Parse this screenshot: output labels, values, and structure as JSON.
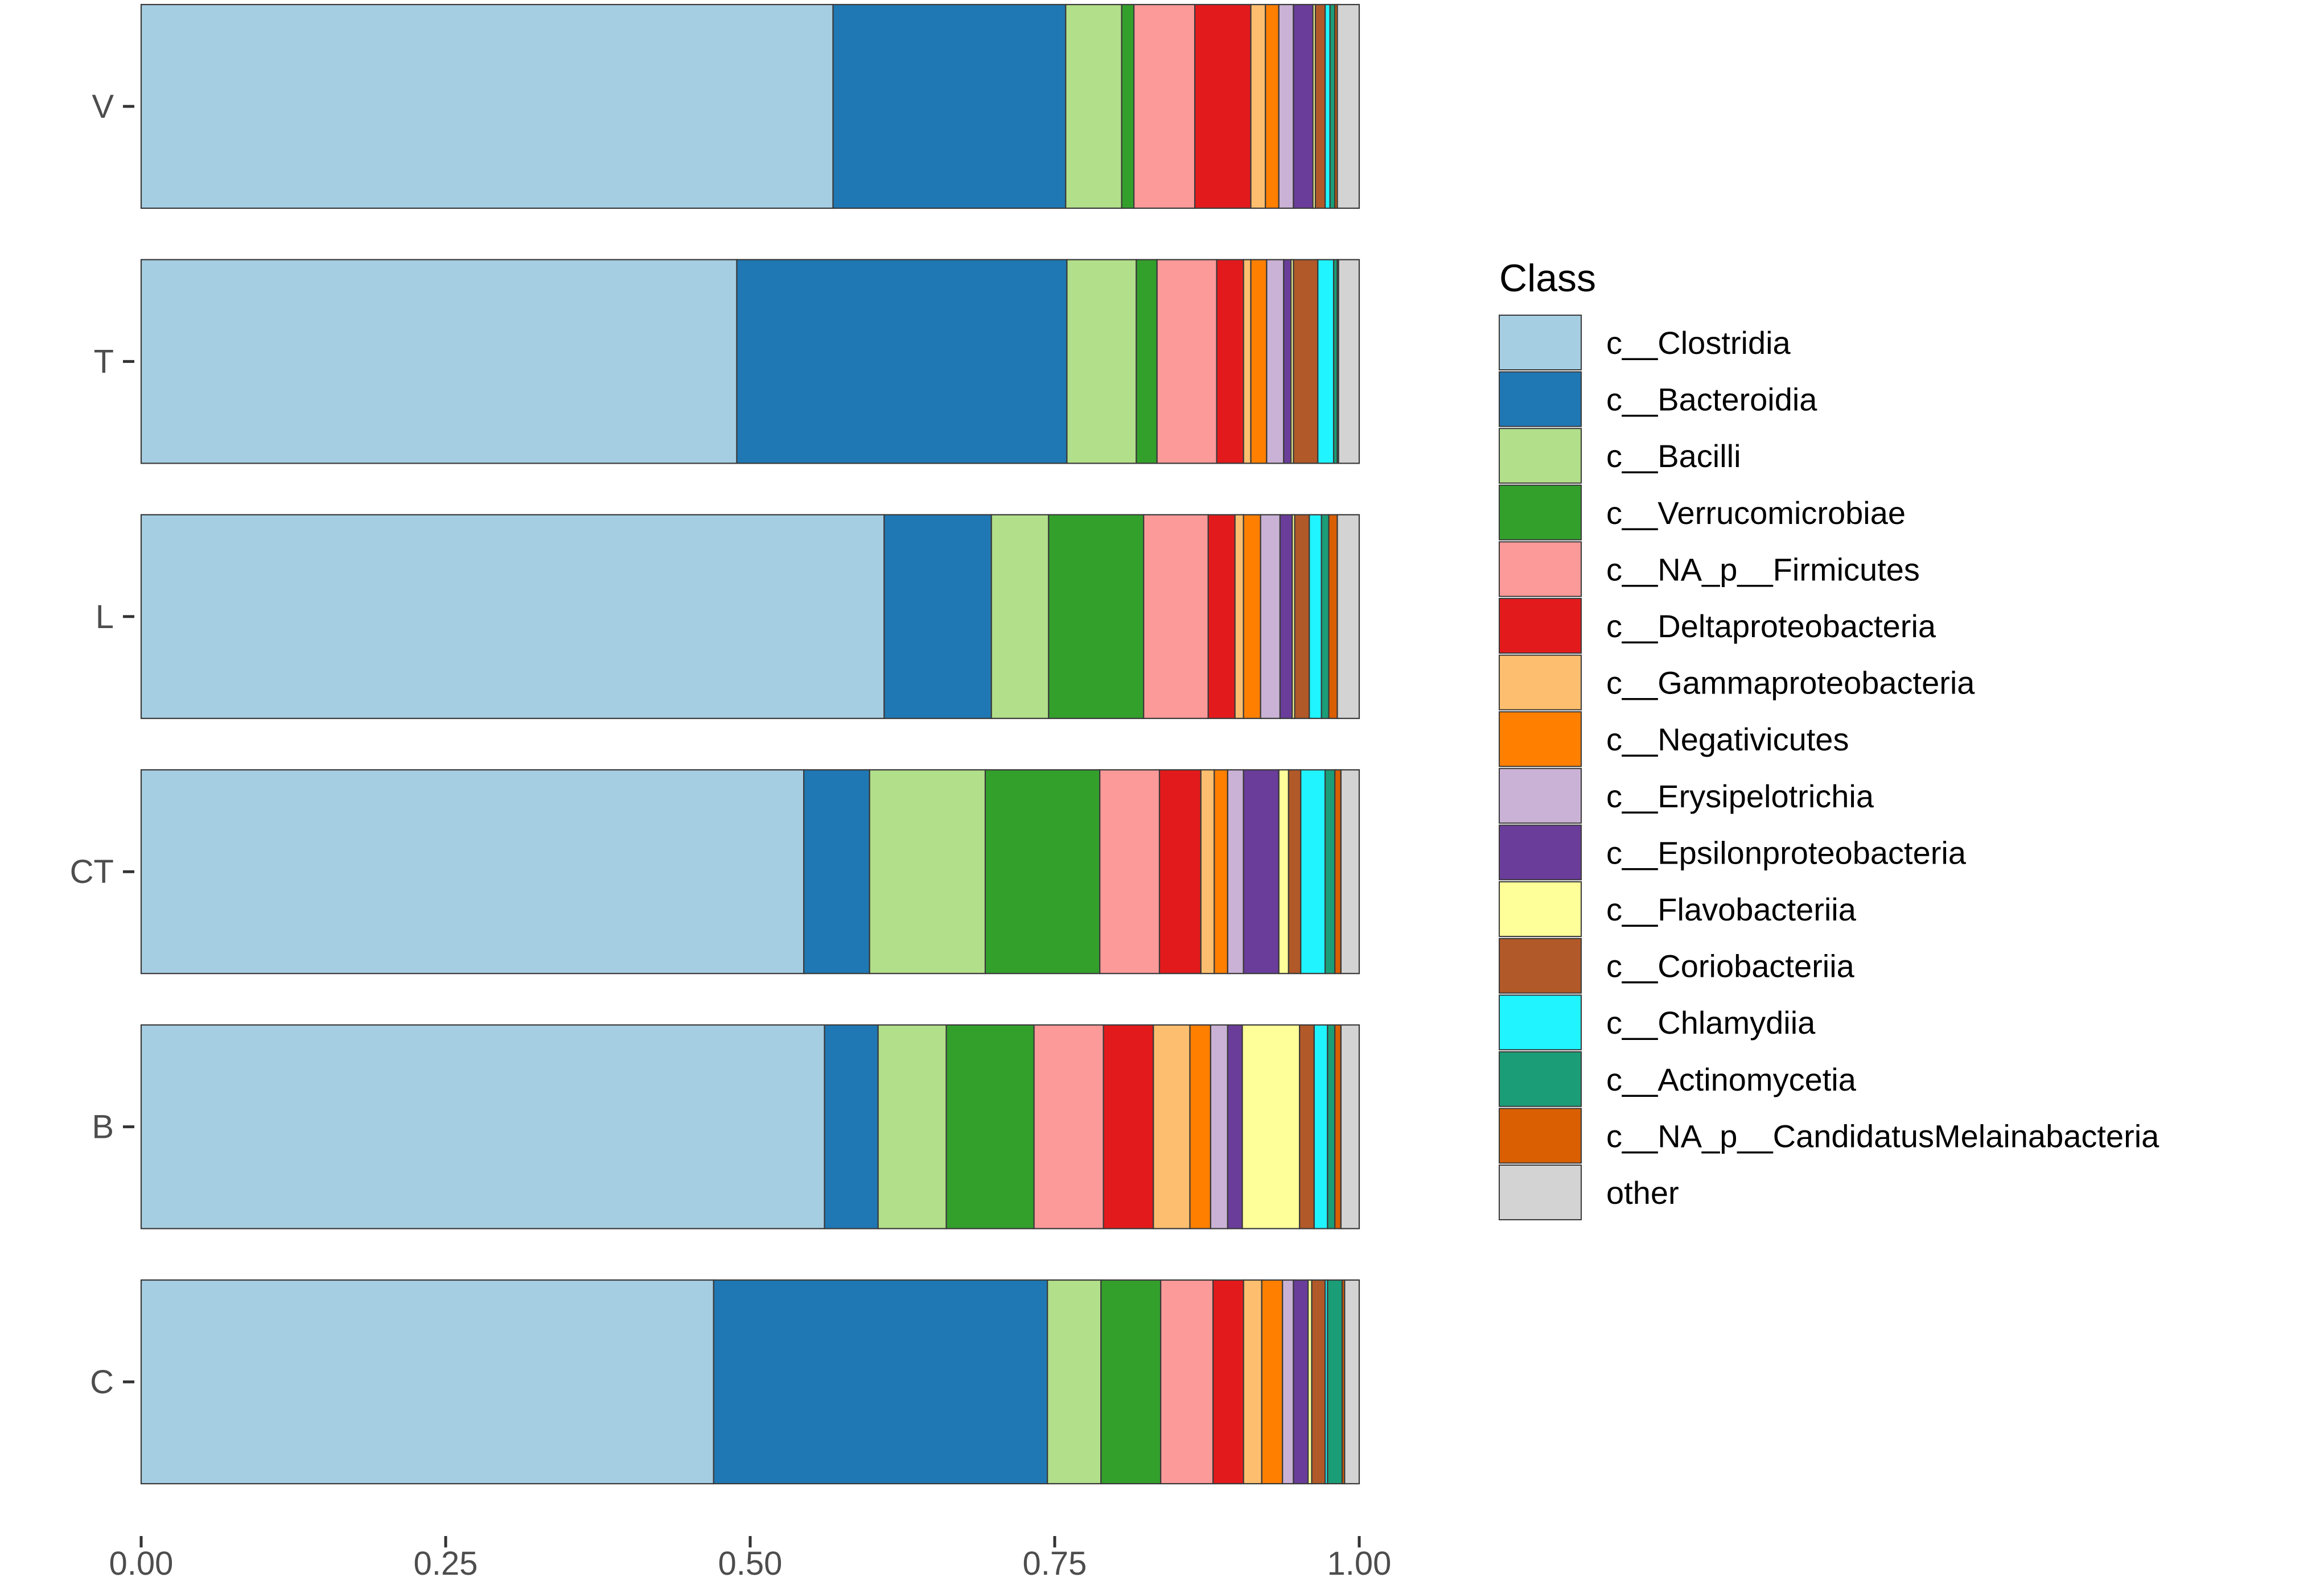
{
  "chart_data": {
    "type": "bar",
    "orientation": "horizontal",
    "stacked": true,
    "title": "",
    "xlabel": "",
    "ylabel": "",
    "xlim": [
      0,
      1
    ],
    "x_ticks": [
      "0.00",
      "0.25",
      "0.50",
      "0.75",
      "1.00"
    ],
    "x_tick_values": [
      0,
      0.25,
      0.5,
      0.75,
      1.0
    ],
    "categories": [
      "V",
      "T",
      "L",
      "CT",
      "B",
      "C"
    ],
    "legend_title": "Class",
    "legend_position": "right",
    "series": [
      {
        "name": "c__Clostridia",
        "color": "#A6CEE3",
        "values": [
          0.568,
          0.489,
          0.61,
          0.544,
          0.561,
          0.47
        ]
      },
      {
        "name": "c__Bacteroidia",
        "color": "#1F78B4",
        "values": [
          0.191,
          0.271,
          0.088,
          0.054,
          0.044,
          0.274
        ]
      },
      {
        "name": "c__Bacilli",
        "color": "#B2DF8A",
        "values": [
          0.046,
          0.057,
          0.047,
          0.095,
          0.056,
          0.044
        ]
      },
      {
        "name": "c__Verrucomicrobiae",
        "color": "#33A02C",
        "values": [
          0.01,
          0.017,
          0.078,
          0.094,
          0.072,
          0.049
        ]
      },
      {
        "name": "c__NA_p__Firmicutes",
        "color": "#FB9A99",
        "values": [
          0.05,
          0.049,
          0.053,
          0.049,
          0.057,
          0.043
        ]
      },
      {
        "name": "c__Deltaproteobacteria",
        "color": "#E31A1C",
        "values": [
          0.046,
          0.022,
          0.022,
          0.034,
          0.041,
          0.025
        ]
      },
      {
        "name": "c__Gammaproteobacteria",
        "color": "#FDBF6F",
        "values": [
          0.012,
          0.006,
          0.007,
          0.011,
          0.03,
          0.015
        ]
      },
      {
        "name": "c__Negativicutes",
        "color": "#FF7F00",
        "values": [
          0.011,
          0.013,
          0.014,
          0.011,
          0.017,
          0.017
        ]
      },
      {
        "name": "c__Erysipelotrichia",
        "color": "#CAB2D6",
        "values": [
          0.012,
          0.014,
          0.016,
          0.013,
          0.014,
          0.009
        ]
      },
      {
        "name": "c__Epsilonproteobacteria",
        "color": "#6A3D9A",
        "values": [
          0.016,
          0.006,
          0.01,
          0.029,
          0.012,
          0.012
        ]
      },
      {
        "name": "c__Flavobacteriia",
        "color": "#FFFF99",
        "values": [
          0.002,
          0.002,
          0.002,
          0.008,
          0.047,
          0.003
        ]
      },
      {
        "name": "c__Coriobacteriia",
        "color": "#B15928",
        "values": [
          0.008,
          0.02,
          0.012,
          0.01,
          0.012,
          0.011
        ]
      },
      {
        "name": "c__Chlamydiia",
        "color": "#1FF4FF",
        "values": [
          0.004,
          0.013,
          0.01,
          0.02,
          0.011,
          0.002
        ]
      },
      {
        "name": "c__Actinomycetia",
        "color": "#1B9E77",
        "values": [
          0.004,
          0.003,
          0.006,
          0.008,
          0.006,
          0.012
        ]
      },
      {
        "name": "c__NA_p__CandidatusMelainabacteria",
        "color": "#D95F02",
        "values": [
          0.002,
          0.001,
          0.007,
          0.005,
          0.005,
          0.002
        ]
      },
      {
        "name": "other",
        "color": "#D3D3D3",
        "values": [
          0.018,
          0.017,
          0.018,
          0.015,
          0.015,
          0.012
        ]
      }
    ]
  }
}
